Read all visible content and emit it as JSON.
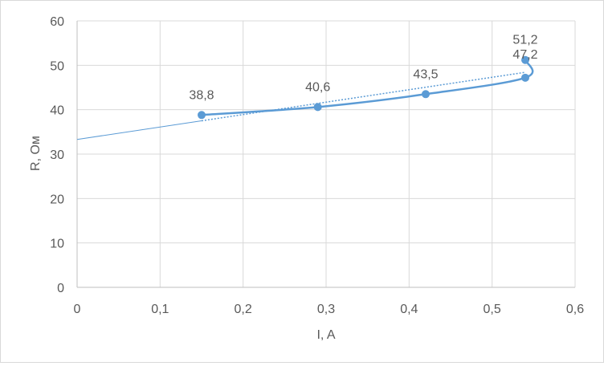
{
  "chart_data": {
    "type": "scatter",
    "title": "",
    "xlabel": "I, A",
    "ylabel": "R, Ом",
    "xlim": [
      0,
      0.6
    ],
    "ylim": [
      0,
      60
    ],
    "x_ticks": [
      "0",
      "0,1",
      "0,2",
      "0,3",
      "0,4",
      "0,5",
      "0,6"
    ],
    "y_ticks": [
      "0",
      "10",
      "20",
      "30",
      "40",
      "50",
      "60"
    ],
    "x_tick_values": [
      0,
      0.1,
      0.2,
      0.3,
      0.4,
      0.5,
      0.6
    ],
    "y_tick_values": [
      0,
      10,
      20,
      30,
      40,
      50,
      60
    ],
    "grid": true,
    "legend": "none",
    "series": [
      {
        "x": [
          0.15,
          0.29,
          0.42,
          0.54,
          0.54
        ],
        "y": [
          38.8,
          40.6,
          43.5,
          47.2,
          51.2
        ],
        "labels": [
          "38,8",
          "40,6",
          "43,5",
          "47,2",
          "51,2"
        ],
        "color": "#5b9bd5"
      }
    ],
    "trendline": {
      "color": "#5b9bd5",
      "style": "dotted",
      "x_range": [
        0.15,
        0.54
      ],
      "extended_solid_x_range": [
        0,
        0.15
      ],
      "intercept": 33.3,
      "slope": 28
    }
  }
}
